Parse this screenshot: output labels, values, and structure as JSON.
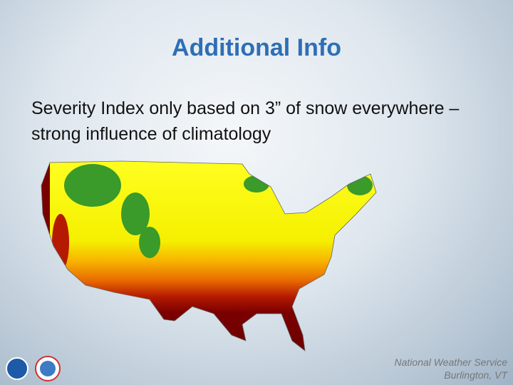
{
  "slide": {
    "title": "Additional Info",
    "body": "Severity Index only based on 3” of snow everywhere – strong influence of climatology",
    "footer": {
      "line1": "National Weather Service",
      "line2": "Burlington, VT"
    }
  }
}
